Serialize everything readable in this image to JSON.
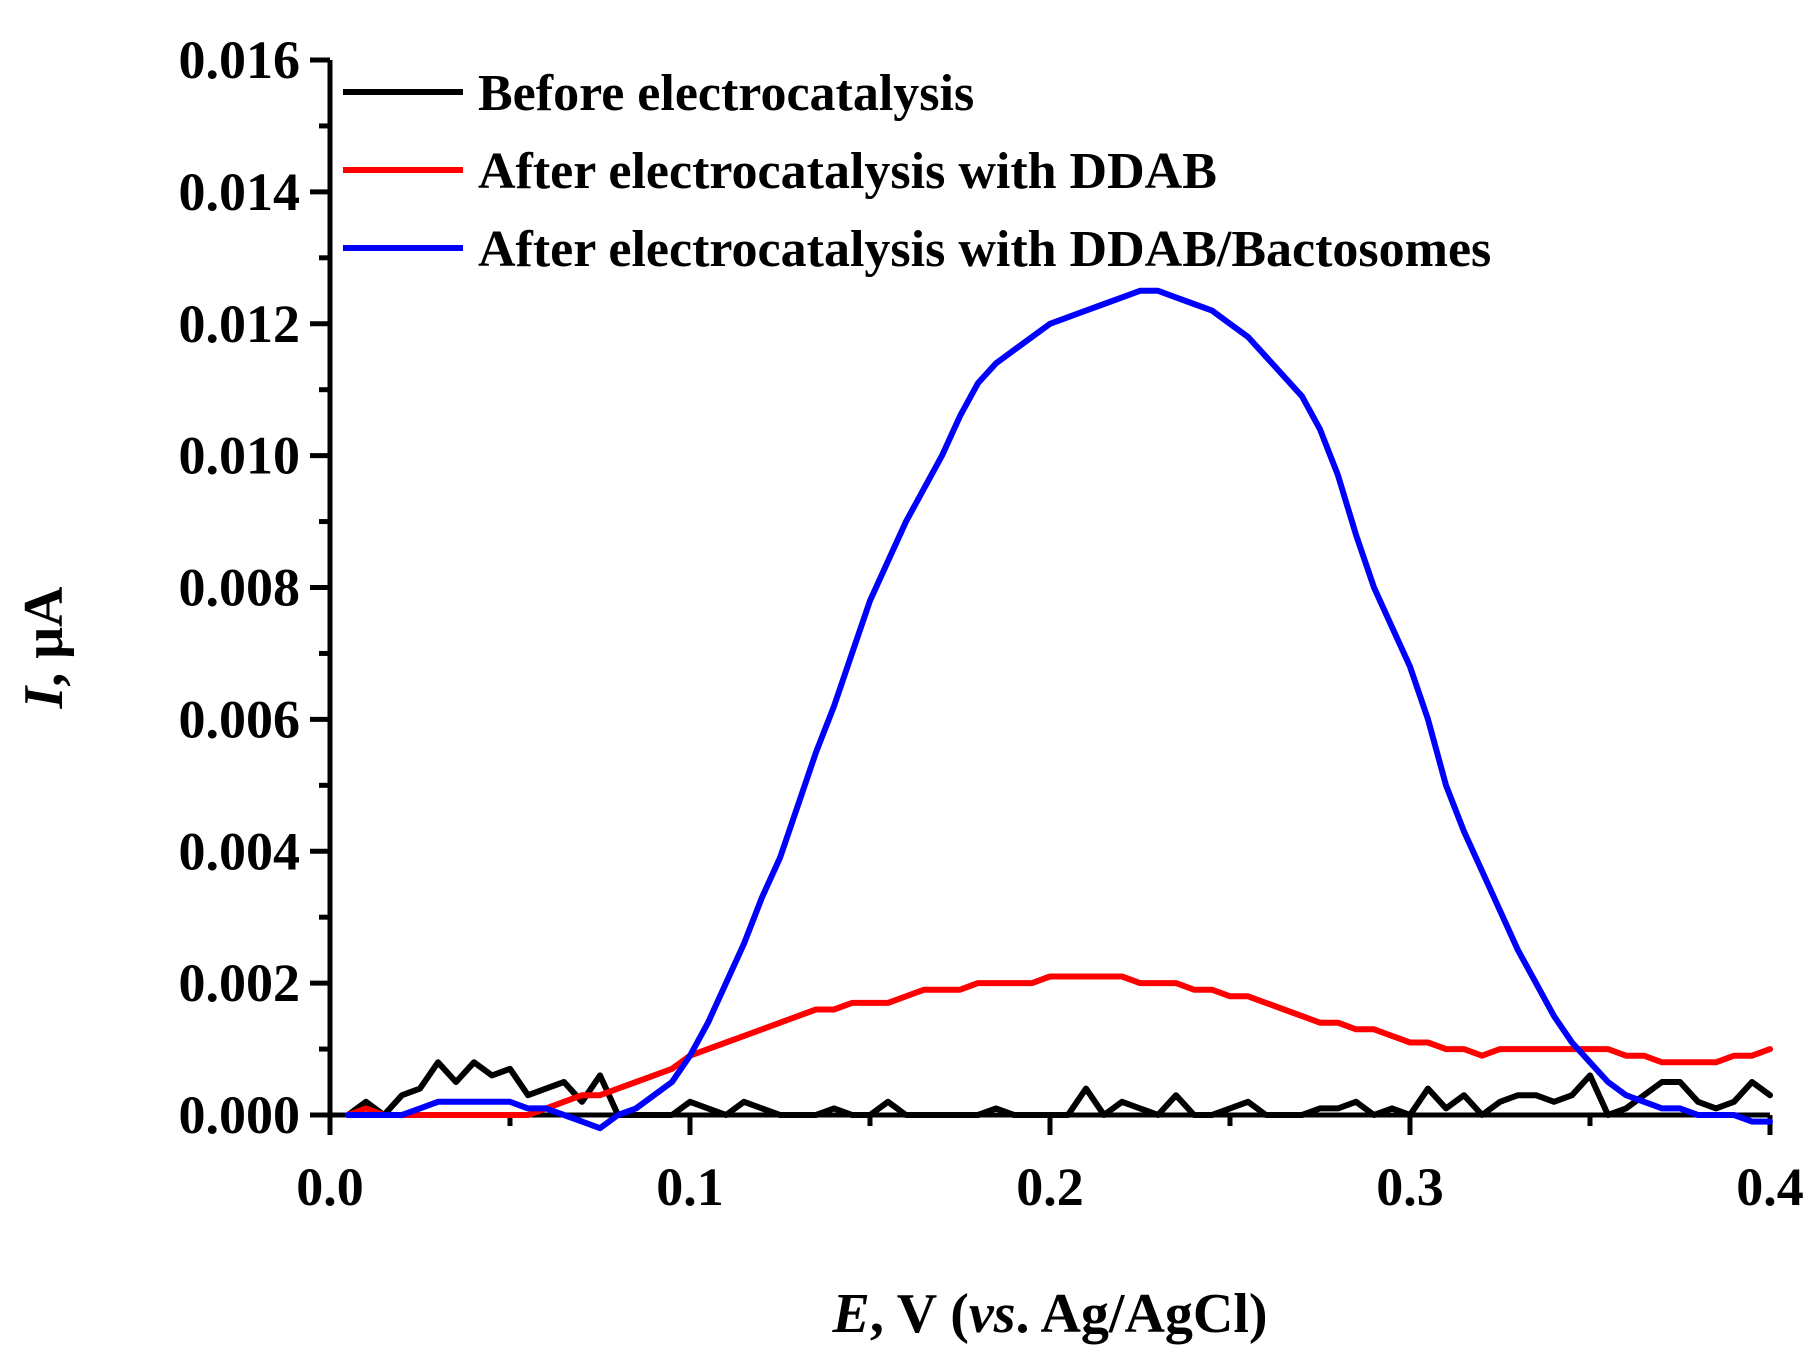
{
  "chart_data": {
    "type": "line",
    "title": "",
    "xlabel": {
      "italic": "E",
      "plain1": ", V (",
      "italic2": "vs",
      "plain2": ". Ag/AgCl)"
    },
    "ylabel": {
      "italic": "I",
      "plain": ", μA"
    },
    "xlim": [
      0.0,
      0.4
    ],
    "ylim": [
      0.0,
      0.016
    ],
    "x_ticks": [
      {
        "value": 0.0,
        "label": "0.0"
      },
      {
        "value": 0.1,
        "label": "0.1"
      },
      {
        "value": 0.2,
        "label": "0.2"
      },
      {
        "value": 0.3,
        "label": "0.3"
      },
      {
        "value": 0.4,
        "label": "0.4"
      }
    ],
    "y_ticks": [
      {
        "value": 0.0,
        "label": "0.000"
      },
      {
        "value": 0.002,
        "label": "0.002"
      },
      {
        "value": 0.004,
        "label": "0.004"
      },
      {
        "value": 0.006,
        "label": "0.006"
      },
      {
        "value": 0.008,
        "label": "0.008"
      },
      {
        "value": 0.01,
        "label": "0.010"
      },
      {
        "value": 0.012,
        "label": "0.012"
      },
      {
        "value": 0.014,
        "label": "0.014"
      },
      {
        "value": 0.016,
        "label": "0.016"
      }
    ],
    "legend_position": "top-left",
    "grid": false,
    "series": [
      {
        "name": "Before electrocatalysis",
        "color": "#000000",
        "x": [
          0.005,
          0.01,
          0.015,
          0.02,
          0.025,
          0.03,
          0.035,
          0.04,
          0.045,
          0.05,
          0.055,
          0.06,
          0.065,
          0.07,
          0.075,
          0.08,
          0.085,
          0.09,
          0.095,
          0.1,
          0.105,
          0.11,
          0.115,
          0.12,
          0.125,
          0.13,
          0.135,
          0.14,
          0.145,
          0.15,
          0.155,
          0.16,
          0.165,
          0.17,
          0.175,
          0.18,
          0.185,
          0.19,
          0.195,
          0.2,
          0.205,
          0.21,
          0.215,
          0.22,
          0.225,
          0.23,
          0.235,
          0.24,
          0.245,
          0.25,
          0.255,
          0.26,
          0.265,
          0.27,
          0.275,
          0.28,
          0.285,
          0.29,
          0.295,
          0.3,
          0.305,
          0.31,
          0.315,
          0.32,
          0.325,
          0.33,
          0.335,
          0.34,
          0.345,
          0.35,
          0.355,
          0.36,
          0.365,
          0.37,
          0.375,
          0.38,
          0.385,
          0.39,
          0.395,
          0.4
        ],
        "y": [
          0.0,
          0.0002,
          0.0,
          0.0003,
          0.0004,
          0.0008,
          0.0005,
          0.0008,
          0.0006,
          0.0007,
          0.0003,
          0.0004,
          0.0005,
          0.0002,
          0.0006,
          0.0,
          0.0,
          0.0,
          0.0,
          0.0002,
          0.0001,
          0.0,
          0.0002,
          0.0001,
          0.0,
          0.0,
          0.0,
          0.0001,
          0.0,
          0.0,
          0.0002,
          0.0,
          0.0,
          0.0,
          0.0,
          0.0,
          0.0001,
          0.0,
          0.0,
          0.0,
          0.0,
          0.0004,
          0.0,
          0.0002,
          0.0001,
          0.0,
          0.0003,
          0.0,
          0.0,
          0.0001,
          0.0002,
          0.0,
          0.0,
          0.0,
          0.0001,
          0.0001,
          0.0002,
          0.0,
          0.0001,
          0.0,
          0.0004,
          0.0001,
          0.0003,
          0.0,
          0.0002,
          0.0003,
          0.0003,
          0.0002,
          0.0003,
          0.0006,
          0.0,
          0.0001,
          0.0003,
          0.0005,
          0.0005,
          0.0002,
          0.0001,
          0.0002,
          0.0005,
          0.0003
        ]
      },
      {
        "name": "After electrocatalysis with DDAB",
        "color": "#ff0000",
        "x": [
          0.005,
          0.01,
          0.015,
          0.02,
          0.025,
          0.03,
          0.035,
          0.04,
          0.045,
          0.05,
          0.055,
          0.06,
          0.065,
          0.07,
          0.075,
          0.08,
          0.085,
          0.09,
          0.095,
          0.1,
          0.105,
          0.11,
          0.115,
          0.12,
          0.125,
          0.13,
          0.135,
          0.14,
          0.145,
          0.15,
          0.155,
          0.16,
          0.165,
          0.17,
          0.175,
          0.18,
          0.185,
          0.19,
          0.195,
          0.2,
          0.205,
          0.21,
          0.215,
          0.22,
          0.225,
          0.23,
          0.235,
          0.24,
          0.245,
          0.25,
          0.255,
          0.26,
          0.265,
          0.27,
          0.275,
          0.28,
          0.285,
          0.29,
          0.295,
          0.3,
          0.305,
          0.31,
          0.315,
          0.32,
          0.325,
          0.33,
          0.335,
          0.34,
          0.345,
          0.35,
          0.355,
          0.36,
          0.365,
          0.37,
          0.375,
          0.38,
          0.385,
          0.39,
          0.395,
          0.4
        ],
        "y": [
          0.0,
          0.0001,
          0.0,
          0.0,
          0.0,
          0.0,
          0.0,
          0.0,
          0.0,
          0.0,
          0.0,
          0.0001,
          0.0002,
          0.0003,
          0.0003,
          0.0004,
          0.0005,
          0.0006,
          0.0007,
          0.0009,
          0.001,
          0.0011,
          0.0012,
          0.0013,
          0.0014,
          0.0015,
          0.0016,
          0.0016,
          0.0017,
          0.0017,
          0.0017,
          0.0018,
          0.0019,
          0.0019,
          0.0019,
          0.002,
          0.002,
          0.002,
          0.002,
          0.0021,
          0.0021,
          0.0021,
          0.0021,
          0.0021,
          0.002,
          0.002,
          0.002,
          0.0019,
          0.0019,
          0.0018,
          0.0018,
          0.0017,
          0.0016,
          0.0015,
          0.0014,
          0.0014,
          0.0013,
          0.0013,
          0.0012,
          0.0011,
          0.0011,
          0.001,
          0.001,
          0.0009,
          0.001,
          0.001,
          0.001,
          0.001,
          0.001,
          0.001,
          0.001,
          0.0009,
          0.0009,
          0.0008,
          0.0008,
          0.0008,
          0.0008,
          0.0009,
          0.0009,
          0.001
        ]
      },
      {
        "name": "After electrocatalysis with DDAB/Bactosomes",
        "color": "#0000ff",
        "x": [
          0.005,
          0.01,
          0.015,
          0.02,
          0.025,
          0.03,
          0.035,
          0.04,
          0.045,
          0.05,
          0.055,
          0.06,
          0.065,
          0.07,
          0.075,
          0.08,
          0.085,
          0.09,
          0.095,
          0.1,
          0.105,
          0.11,
          0.115,
          0.12,
          0.125,
          0.13,
          0.135,
          0.14,
          0.145,
          0.15,
          0.155,
          0.16,
          0.165,
          0.17,
          0.175,
          0.18,
          0.185,
          0.19,
          0.195,
          0.2,
          0.205,
          0.21,
          0.215,
          0.22,
          0.225,
          0.23,
          0.235,
          0.24,
          0.245,
          0.25,
          0.255,
          0.26,
          0.265,
          0.27,
          0.275,
          0.28,
          0.285,
          0.29,
          0.295,
          0.3,
          0.305,
          0.31,
          0.315,
          0.32,
          0.325,
          0.33,
          0.335,
          0.34,
          0.345,
          0.35,
          0.355,
          0.36,
          0.365,
          0.37,
          0.375,
          0.38,
          0.385,
          0.39,
          0.395,
          0.4
        ],
        "y": [
          0.0,
          0.0,
          0.0,
          0.0,
          0.0001,
          0.0002,
          0.0002,
          0.0002,
          0.0002,
          0.0002,
          0.0001,
          0.0001,
          0.0,
          -0.0001,
          -0.0002,
          0.0,
          0.0001,
          0.0003,
          0.0005,
          0.0009,
          0.0014,
          0.002,
          0.0026,
          0.0033,
          0.0039,
          0.0047,
          0.0055,
          0.0062,
          0.007,
          0.0078,
          0.0084,
          0.009,
          0.0095,
          0.01,
          0.0106,
          0.0111,
          0.0114,
          0.0116,
          0.0118,
          0.012,
          0.0121,
          0.0122,
          0.0123,
          0.0124,
          0.0125,
          0.0125,
          0.0124,
          0.0123,
          0.0122,
          0.012,
          0.0118,
          0.0115,
          0.0112,
          0.0109,
          0.0104,
          0.0097,
          0.0088,
          0.008,
          0.0074,
          0.0068,
          0.006,
          0.005,
          0.0043,
          0.0037,
          0.0031,
          0.0025,
          0.002,
          0.0015,
          0.0011,
          0.0008,
          0.0005,
          0.0003,
          0.0002,
          0.0001,
          0.0001,
          0.0,
          0.0,
          0.0,
          -0.0001,
          -0.0001
        ]
      }
    ]
  }
}
